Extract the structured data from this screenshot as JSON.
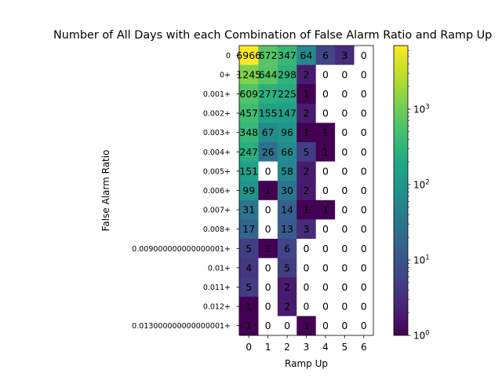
{
  "chart_data": {
    "type": "heatmap",
    "title": "Number of All Days with each Combination of False Alarm Ratio and Ramp Up",
    "xlabel": "Ramp Up",
    "ylabel": "False Alarm Ratio",
    "x_categories": [
      "0",
      "1",
      "2",
      "3",
      "4",
      "5",
      "6"
    ],
    "y_categories": [
      "0",
      "0+",
      "0.001+",
      "0.002+",
      "0.003+",
      "0.004+",
      "0.005+",
      "0.006+",
      "0.007+",
      "0.008+",
      "0.009000000000000001+",
      "0.01+",
      "0.011+",
      "0.012+",
      "0.013000000000000001+"
    ],
    "values": [
      [
        6966,
        672,
        347,
        64,
        6,
        3,
        0
      ],
      [
        1245,
        644,
        298,
        2,
        0,
        0,
        0
      ],
      [
        609,
        277,
        225,
        1,
        0,
        0,
        0
      ],
      [
        457,
        155,
        147,
        2,
        0,
        0,
        0
      ],
      [
        348,
        67,
        96,
        1,
        1,
        0,
        0
      ],
      [
        247,
        26,
        66,
        5,
        1,
        0,
        0
      ],
      [
        151,
        0,
        58,
        2,
        0,
        0,
        0
      ],
      [
        99,
        1,
        30,
        2,
        0,
        0,
        0
      ],
      [
        31,
        0,
        14,
        1,
        1,
        0,
        0
      ],
      [
        17,
        0,
        13,
        3,
        0,
        0,
        0
      ],
      [
        5,
        1,
        6,
        0,
        0,
        0,
        0
      ],
      [
        4,
        0,
        5,
        0,
        0,
        0,
        0
      ],
      [
        5,
        0,
        2,
        0,
        0,
        0,
        0
      ],
      [
        1,
        0,
        2,
        0,
        0,
        0,
        0
      ],
      [
        1,
        0,
        0,
        1,
        0,
        0,
        0
      ]
    ],
    "colorbar": {
      "scale": "log",
      "range": [
        1,
        6966
      ],
      "colormap": "viridis",
      "ticks": [
        {
          "value": 1,
          "base": "10",
          "exp": "0"
        },
        {
          "value": 10,
          "base": "10",
          "exp": "1"
        },
        {
          "value": 100,
          "base": "10",
          "exp": "2"
        },
        {
          "value": 1000,
          "base": "10",
          "exp": "3"
        }
      ]
    },
    "zero_cell_color": "#ffffff"
  }
}
